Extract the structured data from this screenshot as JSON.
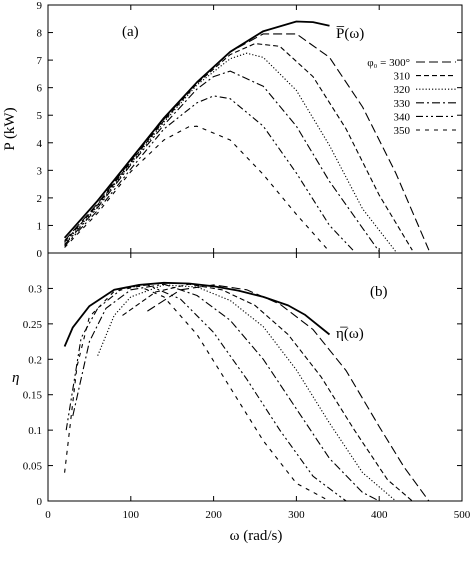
{
  "chart_data": [
    {
      "type": "line",
      "panel_label": "(a)",
      "ylabel": "P (kW)",
      "xlim": [
        0,
        500
      ],
      "ylim": [
        0,
        9
      ],
      "y_ticks": [
        "0",
        "1",
        "2",
        "3",
        "4",
        "5",
        "6",
        "7",
        "8",
        "9"
      ],
      "x_ticks": [],
      "envelope_label": "P̅(ω)",
      "legend": {
        "placement": "right",
        "entries": [
          "φ₀ = 300°",
          "310",
          "320",
          "330",
          "340",
          "350"
        ]
      },
      "series": [
        {
          "name": "envelope",
          "style": "solid",
          "x": [
            20,
            60,
            100,
            140,
            180,
            220,
            260,
            300,
            320,
            340
          ],
          "y": [
            0.55,
            1.9,
            3.4,
            4.9,
            6.2,
            7.3,
            8.05,
            8.4,
            8.38,
            8.25
          ]
        },
        {
          "name": "φ₀ = 300°",
          "style": "longdash",
          "x": [
            20,
            60,
            100,
            140,
            180,
            220,
            260,
            300,
            340,
            380,
            420,
            460
          ],
          "y": [
            0.45,
            1.8,
            3.35,
            4.85,
            6.2,
            7.3,
            7.95,
            7.95,
            7.1,
            5.3,
            2.9,
            0.1
          ]
        },
        {
          "name": "310",
          "style": "dash",
          "x": [
            20,
            60,
            100,
            140,
            180,
            220,
            250,
            280,
            320,
            360,
            400,
            440
          ],
          "y": [
            0.4,
            1.75,
            3.3,
            4.8,
            6.15,
            7.2,
            7.6,
            7.5,
            6.4,
            4.5,
            2.1,
            0.1
          ]
        },
        {
          "name": "320",
          "style": "dotted",
          "x": [
            20,
            60,
            100,
            140,
            180,
            220,
            240,
            260,
            300,
            340,
            380,
            420
          ],
          "y": [
            0.35,
            1.7,
            3.25,
            4.75,
            6.1,
            7.05,
            7.25,
            7.1,
            5.9,
            3.9,
            1.6,
            0.05
          ]
        },
        {
          "name": "330",
          "style": "dashdot",
          "x": [
            20,
            60,
            100,
            140,
            180,
            200,
            220,
            260,
            300,
            340,
            400
          ],
          "y": [
            0.3,
            1.65,
            3.2,
            4.65,
            5.95,
            6.4,
            6.6,
            6.05,
            4.6,
            2.6,
            0.05
          ]
        },
        {
          "name": "340",
          "style": "dashdotdot",
          "x": [
            20,
            60,
            100,
            140,
            180,
            200,
            220,
            260,
            300,
            340,
            370
          ],
          "y": [
            0.25,
            1.55,
            3.05,
            4.5,
            5.45,
            5.7,
            5.6,
            4.6,
            2.9,
            1.0,
            0.05
          ]
        },
        {
          "name": "350",
          "style": "shortdash",
          "x": [
            20,
            60,
            100,
            140,
            170,
            180,
            220,
            260,
            300,
            340
          ],
          "y": [
            0.2,
            1.45,
            2.95,
            4.1,
            4.58,
            4.6,
            4.1,
            2.85,
            1.4,
            0.05
          ]
        }
      ]
    },
    {
      "type": "line",
      "panel_label": "(b)",
      "xlabel": "ω (rad/s)",
      "ylabel": "η",
      "xlim": [
        0,
        500
      ],
      "ylim": [
        0,
        0.35
      ],
      "y_ticks": [
        "0",
        "0.05",
        "0.1",
        "0.15",
        "0.2",
        "0.25",
        "0.3"
      ],
      "x_ticks": [
        "0",
        "100",
        "200",
        "300",
        "400",
        "500"
      ],
      "envelope_label": "η̅(ω)",
      "series": [
        {
          "name": "envelope",
          "style": "solid",
          "x": [
            20,
            30,
            50,
            80,
            110,
            140,
            170,
            200,
            230,
            260,
            290,
            310,
            340
          ],
          "y": [
            0.218,
            0.245,
            0.275,
            0.298,
            0.305,
            0.308,
            0.307,
            0.303,
            0.297,
            0.288,
            0.276,
            0.263,
            0.235
          ]
        },
        {
          "name": "φ₀ = 300°",
          "style": "longdash",
          "x": [
            120,
            160,
            200,
            240,
            280,
            320,
            360,
            400,
            430,
            460
          ],
          "y": [
            0.268,
            0.298,
            0.305,
            0.298,
            0.278,
            0.242,
            0.184,
            0.105,
            0.048,
            0.0
          ]
        },
        {
          "name": "310",
          "style": "dash",
          "x": [
            90,
            130,
            170,
            210,
            250,
            290,
            330,
            370,
            410,
            440
          ],
          "y": [
            0.262,
            0.295,
            0.306,
            0.298,
            0.276,
            0.235,
            0.175,
            0.1,
            0.03,
            0.0
          ]
        },
        {
          "name": "320",
          "style": "dotted",
          "x": [
            60,
            80,
            100,
            140,
            180,
            220,
            260,
            300,
            340,
            380,
            420
          ],
          "y": [
            0.205,
            0.262,
            0.288,
            0.305,
            0.302,
            0.283,
            0.246,
            0.185,
            0.11,
            0.04,
            0.0
          ]
        },
        {
          "name": "330",
          "style": "dashdot",
          "x": [
            30,
            50,
            70,
            100,
            140,
            180,
            220,
            260,
            300,
            340,
            380,
            400
          ],
          "y": [
            0.12,
            0.225,
            0.272,
            0.298,
            0.306,
            0.29,
            0.255,
            0.2,
            0.13,
            0.06,
            0.012,
            0.0
          ]
        },
        {
          "name": "340",
          "style": "dashdotdot",
          "x": [
            22,
            40,
            60,
            90,
            120,
            160,
            200,
            240,
            280,
            320,
            360,
            375
          ],
          "y": [
            0.1,
            0.23,
            0.272,
            0.3,
            0.305,
            0.285,
            0.238,
            0.172,
            0.1,
            0.035,
            0.0,
            0.0
          ]
        },
        {
          "name": "350",
          "style": "shortdash",
          "x": [
            20,
            35,
            50,
            80,
            110,
            140,
            180,
            220,
            260,
            300,
            340
          ],
          "y": [
            0.04,
            0.19,
            0.26,
            0.296,
            0.303,
            0.288,
            0.235,
            0.16,
            0.085,
            0.025,
            0.0
          ]
        }
      ]
    }
  ]
}
